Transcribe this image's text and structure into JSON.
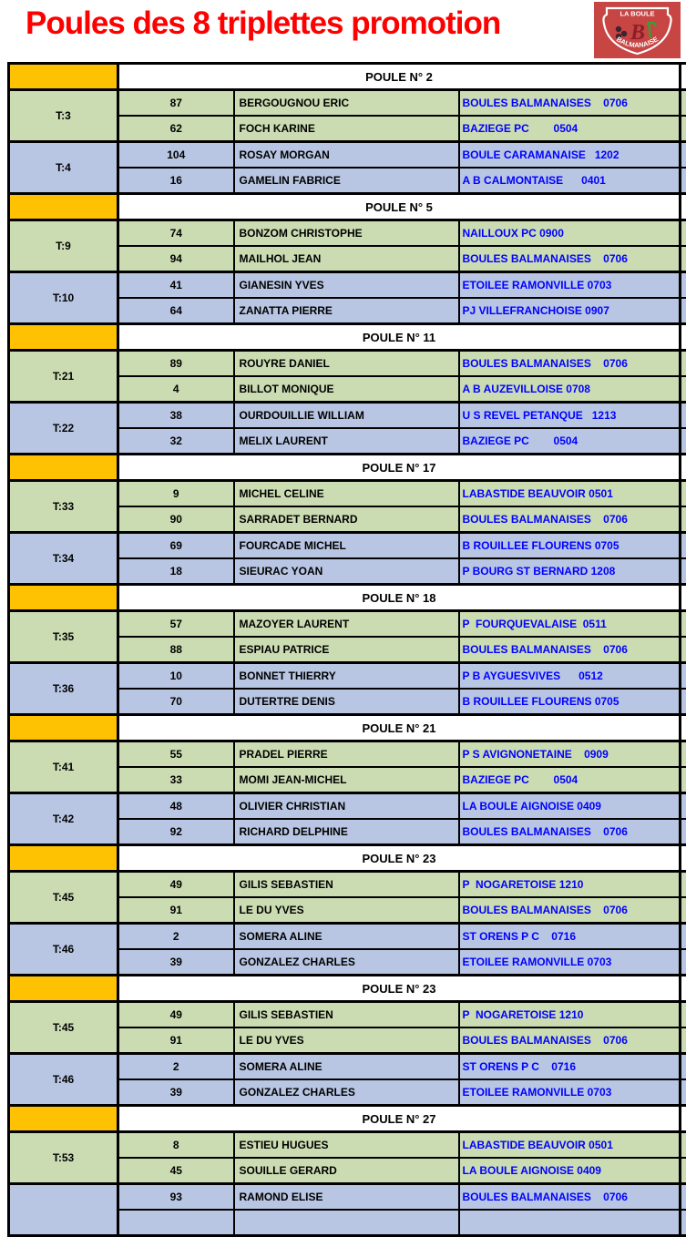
{
  "page": {
    "title": "Poules des 8 triplettes promotion"
  },
  "logo": {
    "top_text": "LA BOULE",
    "monogram": "B",
    "bottom_text": "BALMANAISE"
  },
  "colors": {
    "title_red": "#ff0000",
    "header_orange": "#ffc203",
    "row_green": "#cbdcb2",
    "row_blue": "#b8c6e3",
    "club_text_blue": "#0000ff",
    "border_black": "#000000",
    "logo_red": "#c74543"
  },
  "poules": [
    {
      "label": "POULE N° 2",
      "teams": [
        {
          "id": "T:3",
          "color": "green",
          "players": [
            {
              "num": "87",
              "name": "BERGOUGNOU ERIC",
              "club": "BOULES BALMANAISES    0706"
            },
            {
              "num": "62",
              "name": "FOCH KARINE",
              "club": "BAZIEGE PC        0504"
            }
          ]
        },
        {
          "id": "T:4",
          "color": "blue",
          "players": [
            {
              "num": "104",
              "name": "ROSAY MORGAN",
              "club": "BOULE CARAMANAISE   1202"
            },
            {
              "num": "16",
              "name": "GAMELIN FABRICE",
              "club": "A B CALMONTAISE      0401"
            }
          ]
        }
      ]
    },
    {
      "label": "POULE N° 5",
      "teams": [
        {
          "id": "T:9",
          "color": "green",
          "players": [
            {
              "num": "74",
              "name": "BONZOM CHRISTOPHE",
              "club": "NAILLOUX PC 0900"
            },
            {
              "num": "94",
              "name": "MAILHOL JEAN",
              "club": "BOULES BALMANAISES    0706"
            }
          ]
        },
        {
          "id": "T:10",
          "color": "blue",
          "players": [
            {
              "num": "41",
              "name": "GIANESIN YVES",
              "club": "ETOILEE RAMONVILLE 0703"
            },
            {
              "num": "64",
              "name": "ZANATTA PIERRE",
              "club": "PJ VILLEFRANCHOISE 0907"
            }
          ]
        }
      ]
    },
    {
      "label": "POULE N° 11",
      "teams": [
        {
          "id": "T:21",
          "color": "green",
          "players": [
            {
              "num": "89",
              "name": "ROUYRE DANIEL",
              "club": "BOULES BALMANAISES    0706"
            },
            {
              "num": "4",
              "name": "BILLOT MONIQUE",
              "club": "A B AUZEVILLOISE 0708"
            }
          ]
        },
        {
          "id": "T:22",
          "color": "blue",
          "players": [
            {
              "num": "38",
              "name": "OURDOUILLIE WILLIAM",
              "club": "U S REVEL PETANQUE   1213"
            },
            {
              "num": "32",
              "name": "MELIX LAURENT",
              "club": "BAZIEGE PC        0504"
            }
          ]
        }
      ]
    },
    {
      "label": "POULE N° 17",
      "teams": [
        {
          "id": "T:33",
          "color": "green",
          "players": [
            {
              "num": "9",
              "name": "MICHEL CELINE",
              "club": "LABASTIDE BEAUVOIR 0501"
            },
            {
              "num": "90",
              "name": "SARRADET BERNARD",
              "club": "BOULES BALMANAISES    0706"
            }
          ]
        },
        {
          "id": "T:34",
          "color": "blue",
          "players": [
            {
              "num": "69",
              "name": "FOURCADE MICHEL",
              "club": "B ROUILLEE FLOURENS 0705"
            },
            {
              "num": "18",
              "name": "SIEURAC YOAN",
              "club": "P BOURG ST BERNARD 1208"
            }
          ]
        }
      ]
    },
    {
      "label": "POULE N° 18",
      "teams": [
        {
          "id": "T:35",
          "color": "green",
          "players": [
            {
              "num": "57",
              "name": "MAZOYER LAURENT",
              "club": "P  FOURQUEVALAISE  0511"
            },
            {
              "num": "88",
              "name": "ESPIAU PATRICE",
              "club": "BOULES BALMANAISES    0706"
            }
          ]
        },
        {
          "id": "T:36",
          "color": "blue",
          "players": [
            {
              "num": "10",
              "name": "BONNET THIERRY",
              "club": "P B AYGUESVIVES      0512"
            },
            {
              "num": "70",
              "name": "DUTERTRE DENIS",
              "club": "B ROUILLEE FLOURENS 0705"
            }
          ]
        }
      ]
    },
    {
      "label": "POULE N° 21",
      "teams": [
        {
          "id": "T:41",
          "color": "green",
          "players": [
            {
              "num": "55",
              "name": "PRADEL PIERRE",
              "club": "P S AVIGNONETAINE    0909"
            },
            {
              "num": "33",
              "name": "MOMI JEAN-MICHEL",
              "club": "BAZIEGE PC        0504"
            }
          ]
        },
        {
          "id": "T:42",
          "color": "blue",
          "players": [
            {
              "num": "48",
              "name": "OLIVIER CHRISTIAN",
              "club": "LA BOULE AIGNOISE 0409"
            },
            {
              "num": "92",
              "name": "RICHARD DELPHINE",
              "club": "BOULES BALMANAISES    0706"
            }
          ]
        }
      ]
    },
    {
      "label": "POULE N° 23",
      "teams": [
        {
          "id": "T:45",
          "color": "green",
          "players": [
            {
              "num": "49",
              "name": "GILIS SEBASTIEN",
              "club": "P  NOGARETOISE 1210"
            },
            {
              "num": "91",
              "name": "LE DU YVES",
              "club": "BOULES BALMANAISES    0706"
            }
          ]
        },
        {
          "id": "T:46",
          "color": "blue",
          "players": [
            {
              "num": "2",
              "name": "SOMERA ALINE",
              "club": "ST ORENS P C    0716"
            },
            {
              "num": "39",
              "name": "GONZALEZ CHARLES",
              "club": "ETOILEE RAMONVILLE 0703"
            }
          ]
        }
      ]
    },
    {
      "label": "POULE N° 23",
      "teams": [
        {
          "id": "T:45",
          "color": "green",
          "players": [
            {
              "num": "49",
              "name": "GILIS SEBASTIEN",
              "club": "P  NOGARETOISE 1210"
            },
            {
              "num": "91",
              "name": "LE DU YVES",
              "club": "BOULES BALMANAISES    0706"
            }
          ]
        },
        {
          "id": "T:46",
          "color": "blue",
          "players": [
            {
              "num": "2",
              "name": "SOMERA ALINE",
              "club": "ST ORENS P C    0716"
            },
            {
              "num": "39",
              "name": "GONZALEZ CHARLES",
              "club": "ETOILEE RAMONVILLE 0703"
            }
          ]
        }
      ]
    },
    {
      "label": "POULE N° 27",
      "teams": [
        {
          "id": "T:53",
          "color": "green",
          "players": [
            {
              "num": "8",
              "name": "ESTIEU HUGUES",
              "club": "LABASTIDE BEAUVOIR 0501"
            },
            {
              "num": "45",
              "name": "SOUILLE GERARD",
              "club": "LA BOULE AIGNOISE 0409"
            }
          ]
        },
        {
          "id": "",
          "color": "blue",
          "players": [
            {
              "num": "93",
              "name": "RAMOND ELISE",
              "club": "BOULES BALMANAISES    0706"
            },
            {
              "num": "",
              "name": "",
              "club": ""
            }
          ]
        }
      ]
    }
  ]
}
